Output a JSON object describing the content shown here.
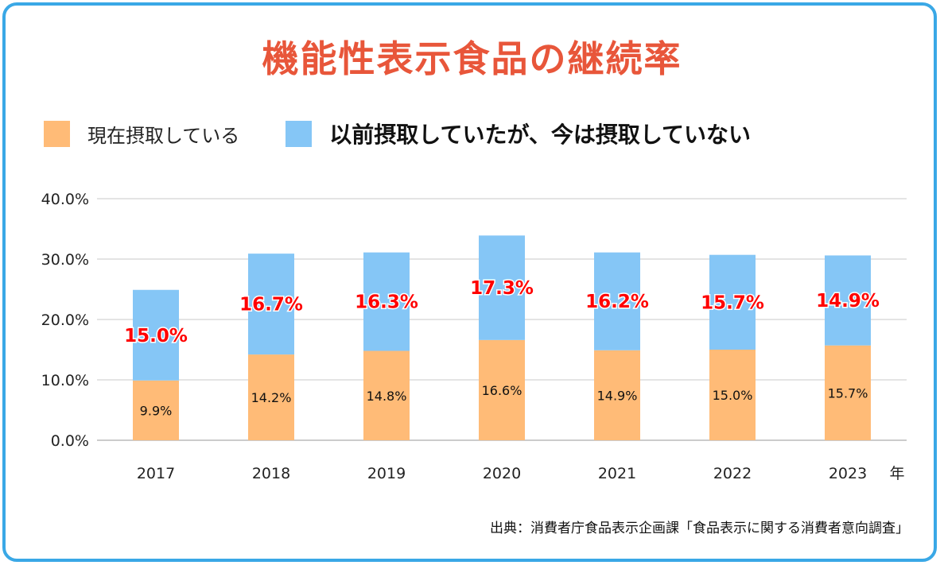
{
  "chart_data": {
    "type": "bar",
    "stacked": true,
    "title": "機能性表示食品の継続率",
    "categories": [
      "2017",
      "2018",
      "2019",
      "2020",
      "2021",
      "2022",
      "2023"
    ],
    "xlabel": "年",
    "ylabel": "",
    "ylim": [
      0,
      40
    ],
    "yticks": [
      "0.0%",
      "10.0%",
      "20.0%",
      "30.0%",
      "40.0%"
    ],
    "grid": true,
    "legend_placement": "top",
    "series": [
      {
        "name": "現在摂取している",
        "color": "#ffbb77",
        "values": [
          9.9,
          14.2,
          14.8,
          16.6,
          14.9,
          15.0,
          15.7
        ],
        "labels": [
          "9.9%",
          "14.2%",
          "14.8%",
          "16.6%",
          "14.9%",
          "15.0%",
          "15.7%"
        ]
      },
      {
        "name": "以前摂取していたが、今は摂取していない",
        "color": "#85c6f6",
        "values": [
          15.0,
          16.7,
          16.3,
          17.3,
          16.2,
          15.7,
          14.9
        ],
        "labels": [
          "15.0%",
          "16.7%",
          "16.3%",
          "17.3%",
          "16.2%",
          "15.7%",
          "14.9%"
        ]
      }
    ],
    "source": "出典：消費者庁食品表示企画課「食品表示に関する消費者意向調査」"
  },
  "colors": {
    "title": "#e8563a",
    "frame": "#3aa8e6",
    "former_label": "#ff0000"
  }
}
